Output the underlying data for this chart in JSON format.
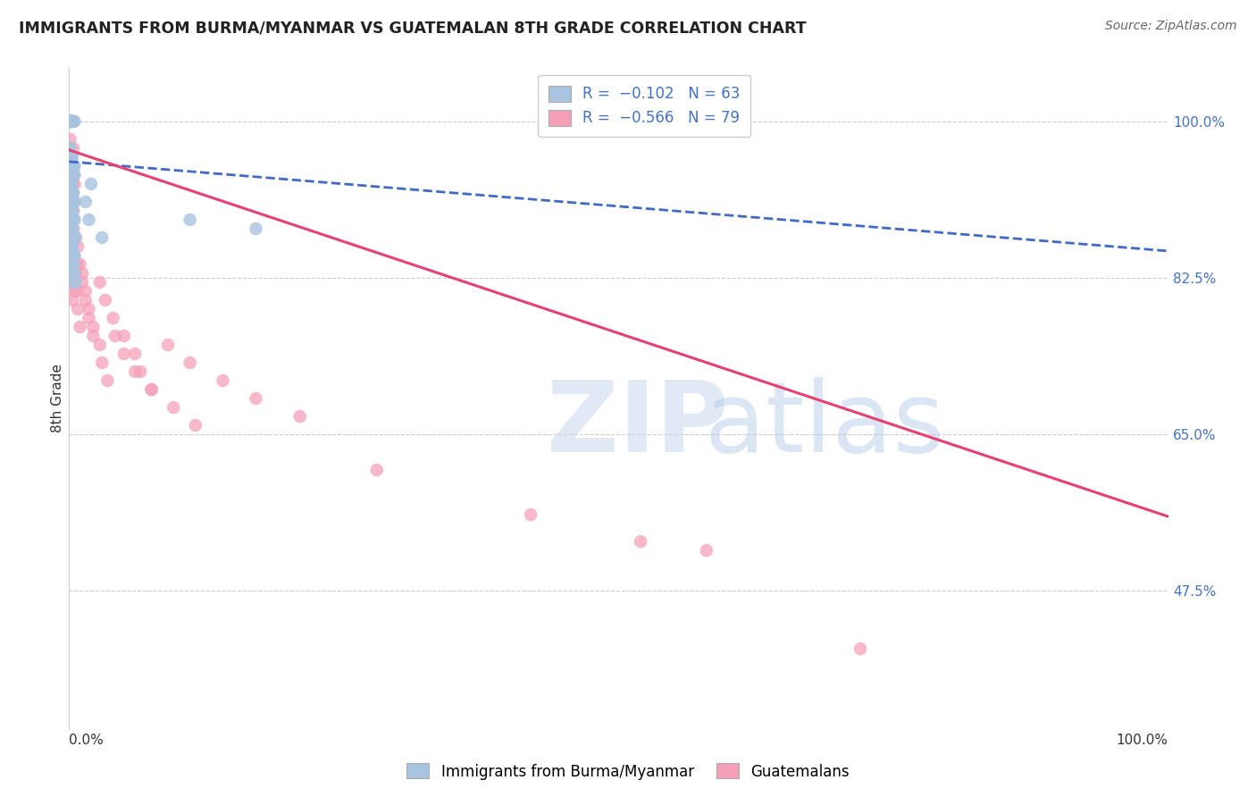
{
  "title": "IMMIGRANTS FROM BURMA/MYANMAR VS GUATEMALAN 8TH GRADE CORRELATION CHART",
  "source": "Source: ZipAtlas.com",
  "ylabel": "8th Grade",
  "ytick_labels": [
    "100.0%",
    "82.5%",
    "65.0%",
    "47.5%"
  ],
  "ytick_values": [
    1.0,
    0.825,
    0.65,
    0.475
  ],
  "xlim": [
    0.0,
    1.0
  ],
  "ylim": [
    0.32,
    1.06
  ],
  "legend_label1": "Immigrants from Burma/Myanmar",
  "legend_label2": "Guatemalans",
  "blue_color": "#a8c4e0",
  "pink_color": "#f5a0b8",
  "blue_line_color": "#4169c8",
  "pink_line_color": "#e84070",
  "blue_trend": [
    0.0,
    1.0,
    0.955,
    0.855
  ],
  "pink_trend": [
    0.0,
    1.0,
    0.968,
    0.558
  ],
  "grid_color": "#cccccc",
  "background_color": "#ffffff",
  "blue_scatter_x": [
    0.001,
    0.002,
    0.003,
    0.001,
    0.004,
    0.002,
    0.005,
    0.003,
    0.001,
    0.002,
    0.001,
    0.001,
    0.003,
    0.002,
    0.004,
    0.003,
    0.005,
    0.005,
    0.003,
    0.002,
    0.001,
    0.002,
    0.003,
    0.004,
    0.002,
    0.001,
    0.005,
    0.004,
    0.003,
    0.002,
    0.002,
    0.003,
    0.001,
    0.004,
    0.003,
    0.005,
    0.002,
    0.002,
    0.001,
    0.003,
    0.006,
    0.002,
    0.004,
    0.003,
    0.003,
    0.001,
    0.005,
    0.002,
    0.004,
    0.003,
    0.004,
    0.001,
    0.003,
    0.002,
    0.005,
    0.003,
    0.006,
    0.02,
    0.015,
    0.018,
    0.03,
    0.11,
    0.17
  ],
  "blue_scatter_y": [
    1.0,
    1.0,
    1.0,
    1.0,
    1.0,
    1.0,
    1.0,
    1.0,
    1.0,
    1.0,
    0.97,
    0.97,
    0.96,
    0.96,
    0.95,
    0.95,
    0.95,
    0.94,
    0.94,
    0.93,
    0.93,
    0.93,
    0.92,
    0.92,
    0.92,
    0.92,
    0.91,
    0.91,
    0.91,
    0.9,
    0.9,
    0.9,
    0.9,
    0.89,
    0.89,
    0.89,
    0.88,
    0.88,
    0.88,
    0.88,
    0.87,
    0.87,
    0.87,
    0.86,
    0.86,
    0.86,
    0.85,
    0.85,
    0.85,
    0.85,
    0.84,
    0.84,
    0.84,
    0.83,
    0.83,
    0.82,
    0.82,
    0.93,
    0.91,
    0.89,
    0.87,
    0.89,
    0.88
  ],
  "pink_scatter_x": [
    0.001,
    0.002,
    0.003,
    0.001,
    0.002,
    0.001,
    0.004,
    0.002,
    0.003,
    0.001,
    0.004,
    0.001,
    0.003,
    0.002,
    0.003,
    0.004,
    0.005,
    0.004,
    0.003,
    0.002,
    0.001,
    0.003,
    0.002,
    0.001,
    0.004,
    0.005,
    0.003,
    0.003,
    0.002,
    0.004,
    0.006,
    0.003,
    0.004,
    0.007,
    0.002,
    0.003,
    0.005,
    0.003,
    0.008,
    0.004,
    0.01,
    0.006,
    0.012,
    0.007,
    0.015,
    0.008,
    0.018,
    0.01,
    0.022,
    0.012,
    0.028,
    0.015,
    0.033,
    0.018,
    0.04,
    0.022,
    0.05,
    0.028,
    0.06,
    0.03,
    0.065,
    0.035,
    0.075,
    0.042,
    0.09,
    0.05,
    0.11,
    0.06,
    0.14,
    0.075,
    0.17,
    0.095,
    0.21,
    0.115,
    0.28,
    0.42,
    0.52,
    0.58,
    0.72
  ],
  "pink_scatter_y": [
    1.0,
    1.0,
    1.0,
    1.0,
    1.0,
    0.98,
    0.97,
    0.96,
    0.95,
    0.95,
    0.94,
    0.93,
    0.93,
    0.92,
    0.92,
    0.91,
    0.91,
    0.9,
    0.9,
    0.89,
    0.89,
    0.88,
    0.88,
    0.87,
    0.95,
    0.93,
    0.91,
    0.9,
    0.89,
    0.88,
    0.87,
    0.86,
    0.85,
    0.84,
    0.83,
    0.82,
    0.81,
    0.8,
    0.86,
    0.85,
    0.84,
    0.83,
    0.82,
    0.81,
    0.8,
    0.79,
    0.78,
    0.77,
    0.76,
    0.83,
    0.82,
    0.81,
    0.8,
    0.79,
    0.78,
    0.77,
    0.76,
    0.75,
    0.74,
    0.73,
    0.72,
    0.71,
    0.7,
    0.76,
    0.75,
    0.74,
    0.73,
    0.72,
    0.71,
    0.7,
    0.69,
    0.68,
    0.67,
    0.66,
    0.61,
    0.56,
    0.53,
    0.52,
    0.41
  ]
}
